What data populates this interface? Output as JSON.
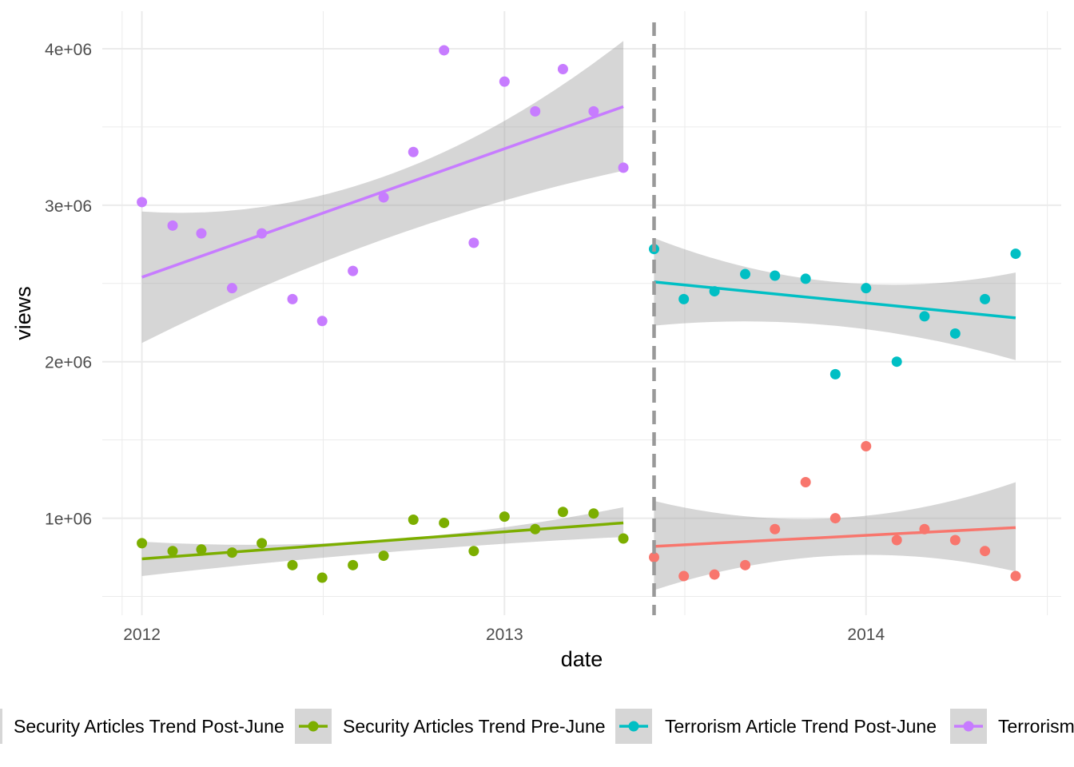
{
  "chart_data": {
    "type": "scatter",
    "xlabel": "date",
    "ylabel": "views",
    "x_ticks": [
      "2012",
      "2013",
      "2014"
    ],
    "y_ticks": [
      "1e+06",
      "2e+06",
      "3e+06",
      "4e+06"
    ],
    "x_tick_values": [
      "2012-01-01",
      "2013-01-01",
      "2014-01-01"
    ],
    "y_tick_values": [
      1000000,
      2000000,
      3000000,
      4000000
    ],
    "xlim": [
      "2011-11-22",
      "2014-07-17"
    ],
    "ylim": [
      380000,
      4240000
    ],
    "grid": true,
    "legend_position": "bottom",
    "cutoff_date": "2013-06-01",
    "series": [
      {
        "name": "Security Articles Trend Post-June",
        "color": "#F8766D",
        "dates": [
          "2013-06-01",
          "2013-07-01",
          "2013-08-01",
          "2013-09-01",
          "2013-10-01",
          "2013-11-01",
          "2013-12-01",
          "2014-01-01",
          "2014-02-01",
          "2014-03-01",
          "2014-04-01",
          "2014-05-01",
          "2014-06-01"
        ],
        "values": [
          750000,
          630000,
          640000,
          700000,
          930000,
          1230000,
          1000000,
          1460000,
          860000,
          930000,
          860000,
          790000,
          630000
        ],
        "trend": [
          820000,
          940000
        ],
        "ci_start": [
          540000,
          1110000
        ],
        "ci_mid": [
          760000,
          1000000
        ],
        "ci_end": [
          660000,
          1230000
        ]
      },
      {
        "name": "Security Articles Trend Pre-June",
        "color": "#7CAE00",
        "dates": [
          "2012-01-01",
          "2012-02-01",
          "2012-03-01",
          "2012-04-01",
          "2012-05-01",
          "2012-06-01",
          "2012-07-01",
          "2012-08-01",
          "2012-09-01",
          "2012-10-01",
          "2012-11-01",
          "2012-12-01",
          "2013-01-01",
          "2013-02-01",
          "2013-03-01",
          "2013-04-01",
          "2013-05-01"
        ],
        "values": [
          840000,
          790000,
          800000,
          780000,
          840000,
          700000,
          620000,
          700000,
          760000,
          990000,
          970000,
          790000,
          1010000,
          930000,
          1040000,
          1030000,
          870000
        ],
        "trend": [
          740000,
          970000
        ],
        "ci_start": [
          630000,
          850000
        ],
        "ci_mid": [
          780000,
          860000
        ],
        "ci_end": [
          880000,
          1070000
        ]
      },
      {
        "name": "Terrorism Article Trend Post-June",
        "color": "#00BFC4",
        "dates": [
          "2013-06-01",
          "2013-07-01",
          "2013-08-01",
          "2013-09-01",
          "2013-10-01",
          "2013-11-01",
          "2013-12-01",
          "2014-01-01",
          "2014-02-01",
          "2014-03-01",
          "2014-04-01",
          "2014-05-01",
          "2014-06-01"
        ],
        "values": [
          2720000,
          2400000,
          2450000,
          2560000,
          2550000,
          2530000,
          1920000,
          2470000,
          2000000,
          2290000,
          2180000,
          2400000,
          2690000
        ],
        "trend": [
          2510000,
          2280000
        ],
        "ci_start": [
          2230000,
          2790000
        ],
        "ci_mid": [
          2230000,
          2510000
        ],
        "ci_end": [
          2010000,
          2570000
        ]
      },
      {
        "name": "Terrorism Article Trend Pre-June",
        "color": "#C77CFF",
        "dates": [
          "2012-01-01",
          "2012-02-01",
          "2012-03-01",
          "2012-04-01",
          "2012-05-01",
          "2012-06-01",
          "2012-07-01",
          "2012-08-01",
          "2012-09-01",
          "2012-10-01",
          "2012-11-01",
          "2012-12-01",
          "2013-01-01",
          "2013-02-01",
          "2013-03-01",
          "2013-04-01",
          "2013-05-01"
        ],
        "values": [
          3020000,
          2870000,
          2820000,
          2470000,
          2820000,
          2400000,
          2260000,
          2580000,
          3050000,
          3340000,
          3990000,
          2760000,
          3790000,
          3600000,
          3870000,
          3600000,
          3240000
        ],
        "trend": [
          2540000,
          3630000
        ],
        "ci_start": [
          2120000,
          2960000
        ],
        "ci_mid": [
          2780000,
          3180000
        ],
        "ci_end": [
          3220000,
          4050000
        ]
      }
    ]
  }
}
